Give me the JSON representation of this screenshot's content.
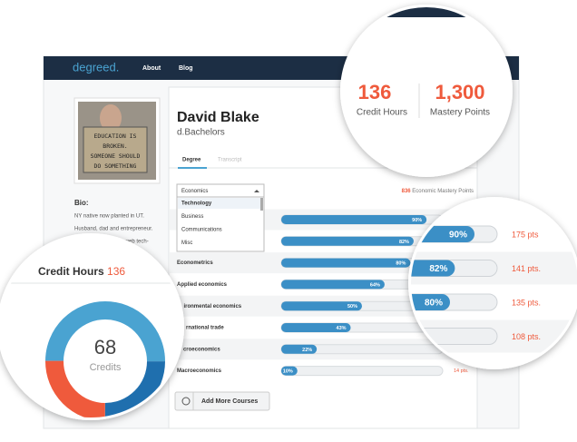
{
  "nav": {
    "logo": "degreed.",
    "links": [
      "About",
      "Blog"
    ]
  },
  "photo_sign": [
    "EDUCATION IS",
    "BROKEN.",
    "SOMEONE SHOULD",
    "DO SOMETHING"
  ],
  "profile": {
    "name": "David Blake",
    "degree": "d.Bachelors"
  },
  "bio": {
    "title": "Bio:",
    "lines": [
      "NY native now planted in UT.",
      "Husband, dad and entrepreneur.",
      "I love learning about web tech-"
    ]
  },
  "tabs": [
    "Degree",
    "Transcript"
  ],
  "dropdown": {
    "selected": "Economics",
    "options": [
      "Technology",
      "Business",
      "Communications",
      "Misc"
    ]
  },
  "mastery": {
    "points": "836",
    "label": "Economic Mastery Points"
  },
  "courses": [
    {
      "percent": 90,
      "label": "90%"
    },
    {
      "percent": 82,
      "label": "82%"
    },
    {
      "name": "Econometrics",
      "percent": 80,
      "label": "80%"
    },
    {
      "name": "Applied economics",
      "percent": 64,
      "label": "64%"
    },
    {
      "name": "ironmental economics",
      "percent": 50,
      "label": "50%"
    },
    {
      "name": "rnational trade",
      "percent": 43,
      "label": "43%"
    },
    {
      "name": "croeconomics",
      "percent": 22,
      "label": "22%"
    },
    {
      "name": "Macroeconomics",
      "percent": 10,
      "label": "10%",
      "points": "14 pts."
    }
  ],
  "button": "Add More Courses",
  "zoom_stats": {
    "credit_hours": "136",
    "credit_label": "Credit Hours",
    "mastery_points": "1,300",
    "mastery_label": "Mastery Points"
  },
  "zoom_credits": {
    "title": "Credit Hours",
    "hours": "136",
    "count": "68",
    "label": "Credits"
  },
  "zoom_courses": [
    {
      "percent": 90,
      "label": "90%",
      "points": "175 pts"
    },
    {
      "percent": 82,
      "label": "82%",
      "points": "141 pts."
    },
    {
      "percent": 80,
      "label": "80%",
      "points": "135 pts."
    },
    {
      "points": "108 pts."
    }
  ]
}
